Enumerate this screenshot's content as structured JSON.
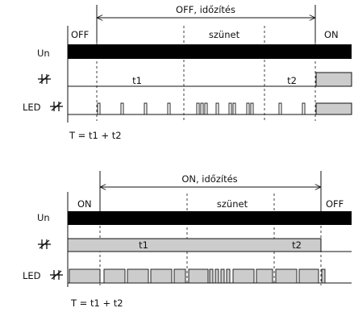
{
  "diagram1": {
    "span_label": "OFF, időzítés",
    "state_left": "OFF",
    "state_pause": "szünet",
    "state_right": "ON",
    "row_un": "Un",
    "row_led": "LED",
    "t1": "t1",
    "t2": "t2",
    "formula": "T = t1 + t2"
  },
  "diagram2": {
    "span_label": "ON, időzítés",
    "state_left": "ON",
    "state_pause": "szünet",
    "state_right": "OFF",
    "row_un": "Un",
    "row_led": "LED",
    "t1": "t1",
    "t2": "t2",
    "formula": "T = t1 + t2"
  },
  "colors": {
    "line": "#111111",
    "fill_gray": "#cccccc",
    "fill_black": "#000000"
  },
  "icons": [
    "relay-contact-icon"
  ]
}
